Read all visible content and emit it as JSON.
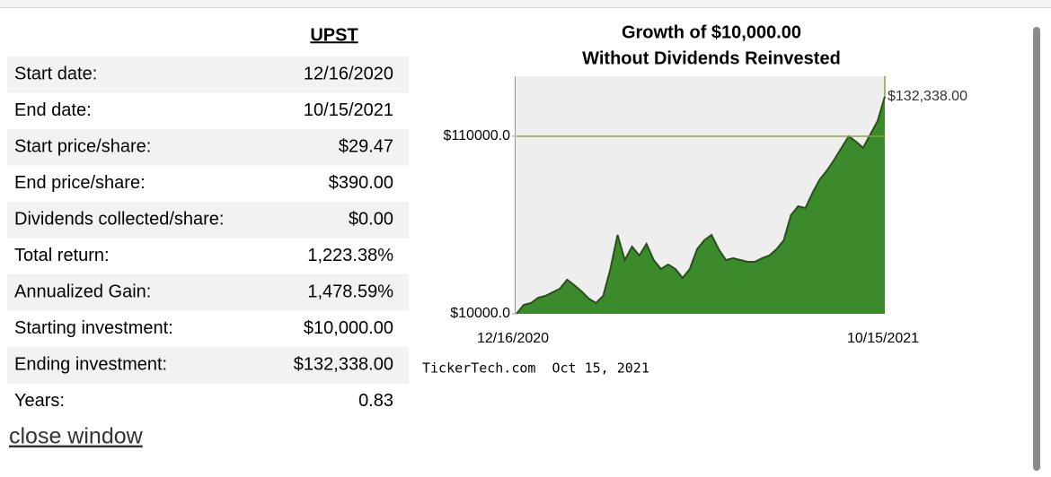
{
  "table": {
    "header": "UPST",
    "rows": [
      [
        "Start date:",
        "12/16/2020"
      ],
      [
        "End date:",
        "10/15/2021"
      ],
      [
        "Start price/share:",
        "$29.47"
      ],
      [
        "End price/share:",
        "$390.00"
      ],
      [
        "Dividends collected/share:",
        "$0.00"
      ],
      [
        "Total return:",
        "1,223.38%"
      ],
      [
        "Annualized Gain:",
        "1,478.59%"
      ],
      [
        "Starting investment:",
        "$10,000.00"
      ],
      [
        "Ending investment:",
        "$132,338.00"
      ],
      [
        "Years:",
        "0.83"
      ]
    ]
  },
  "link": "close window",
  "chart_data": {
    "type": "area",
    "title": "Growth of $10,000.00",
    "subtitle": "Without Dividends Reinvested",
    "x_labels": [
      "12/16/2020",
      "10/15/2021"
    ],
    "values": [
      10000,
      15051,
      16061,
      19091,
      20101,
      22121,
      24141,
      29192,
      26162,
      22626,
      18586,
      16061,
      20101,
      35253,
      54444,
      40303,
      47879,
      42828,
      49394,
      40303,
      35253,
      37778,
      35253,
      30202,
      35253,
      46364,
      51414,
      54444,
      46364,
      40303,
      41313,
      40303,
      39293,
      39293,
      41313,
      42828,
      46364,
      51414,
      65556,
      70606,
      69596,
      78182,
      85758,
      90808,
      96869,
      103434,
      110000,
      106970,
      103434,
      111010,
      118586,
      132338
    ],
    "value_labels": [
      null,
      null,
      null,
      null,
      null,
      null,
      null,
      null,
      null,
      null,
      null,
      null,
      null,
      null,
      null,
      null,
      null,
      null,
      null,
      null,
      null,
      null,
      null,
      null,
      null,
      null,
      null,
      null,
      null,
      null,
      null,
      null,
      null,
      null,
      null,
      null,
      null,
      null,
      null,
      null,
      null,
      null,
      null,
      null,
      null,
      null,
      null,
      null,
      null,
      null,
      null,
      "$132,338.00"
    ],
    "color": "#3b8a2b",
    "ylim": [
      10000,
      143800
    ],
    "yticks": [
      {
        "value": 10000,
        "label": "$10000.0"
      },
      {
        "value": 110000,
        "label": "$110000.0"
      }
    ],
    "reference_line": 110000,
    "footer": "TickerTech.com  Oct 15, 2021"
  }
}
